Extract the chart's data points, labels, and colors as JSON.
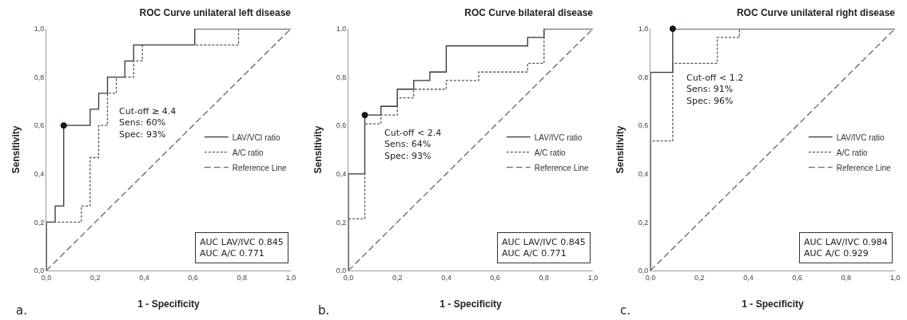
{
  "chart_data": [
    {
      "type": "line",
      "title": "ROC Curve unilateral left disease",
      "xlabel": "1 - Specificity",
      "ylabel": "Sensitivity",
      "xlim": [
        0,
        1
      ],
      "ylim": [
        0,
        1
      ],
      "xticks": [
        {
          "value": 0,
          "label": "0,0"
        },
        {
          "value": 0.2,
          "label": "0,2"
        },
        {
          "value": 0.4,
          "label": "0,4"
        },
        {
          "value": 0.6,
          "label": "0,6"
        },
        {
          "value": 0.8,
          "label": "0,8"
        },
        {
          "value": 1,
          "label": "1,0"
        }
      ],
      "yticks": [
        {
          "value": 0,
          "label": "0,0"
        },
        {
          "value": 0.2,
          "label": "0,2"
        },
        {
          "value": 0.4,
          "label": "0,4"
        },
        {
          "value": 0.6,
          "label": "0,6"
        },
        {
          "value": 0.8,
          "label": "0,8"
        },
        {
          "value": 1,
          "label": "1,0"
        }
      ],
      "grid": false,
      "legend": "right",
      "series": [
        {
          "name": "LAV/VCI ratio",
          "color": "#333333",
          "line_style": "solid",
          "x": [
            0,
            0,
            0.036,
            0.036,
            0.071,
            0.071,
            0.179,
            0.179,
            0.214,
            0.214,
            0.25,
            0.25,
            0.321,
            0.321,
            0.357,
            0.357,
            0.607,
            0.607,
            1
          ],
          "values": [
            0,
            0.2,
            0.2,
            0.267,
            0.267,
            0.6,
            0.6,
            0.667,
            0.667,
            0.733,
            0.733,
            0.8,
            0.8,
            0.867,
            0.867,
            0.933,
            0.933,
            1,
            1
          ]
        },
        {
          "name": "A/C ratio",
          "color": "#555555",
          "line_style": "dotted",
          "x": [
            0,
            0,
            0.143,
            0.143,
            0.179,
            0.179,
            0.214,
            0.214,
            0.25,
            0.25,
            0.286,
            0.286,
            0.357,
            0.357,
            0.393,
            0.393,
            0.786,
            0.786,
            1
          ],
          "values": [
            0,
            0.2,
            0.2,
            0.267,
            0.267,
            0.467,
            0.467,
            0.6,
            0.6,
            0.733,
            0.733,
            0.8,
            0.8,
            0.867,
            0.867,
            0.933,
            0.933,
            1,
            1
          ]
        },
        {
          "name": "Reference Line",
          "color": "#666666",
          "line_style": "dashed",
          "x": [
            0,
            1
          ],
          "values": [
            0,
            1
          ]
        },
        {
          "type": "scatter",
          "color": "#0d1b3e",
          "marker": "circle",
          "x": [
            0.071
          ],
          "values": [
            0.6
          ]
        }
      ],
      "annotations": [
        "Cut-off ≥ 4.4\nSens: 60%\nSpec: 93%",
        "AUC LAV/IVC 0.845\nAUC A/C 0.771",
        "a."
      ]
    },
    {
      "type": "line",
      "title": "ROC Curve bilateral disease",
      "xlabel": "1 - Specificity",
      "ylabel": "Sensitivity",
      "xlim": [
        0,
        1
      ],
      "ylim": [
        0,
        1
      ],
      "xticks": [
        {
          "value": 0,
          "label": "0,0"
        },
        {
          "value": 0.2,
          "label": "0,2"
        },
        {
          "value": 0.4,
          "label": "0,4"
        },
        {
          "value": 0.6,
          "label": "0,6"
        },
        {
          "value": 0.8,
          "label": "0,8"
        },
        {
          "value": 1,
          "label": "1,0"
        }
      ],
      "yticks": [
        {
          "value": 0,
          "label": "0,0"
        },
        {
          "value": 0.2,
          "label": "0,2"
        },
        {
          "value": 0.4,
          "label": "0,4"
        },
        {
          "value": 0.6,
          "label": "0,6"
        },
        {
          "value": 0.8,
          "label": "0,8"
        },
        {
          "value": 1,
          "label": "1,0"
        }
      ],
      "grid": false,
      "legend": "right",
      "series": [
        {
          "name": "LAV/IVC ratio",
          "color": "#333333",
          "line_style": "solid",
          "x": [
            0,
            0,
            0.067,
            0.067,
            0.133,
            0.133,
            0.2,
            0.2,
            0.267,
            0.267,
            0.333,
            0.333,
            0.4,
            0.4,
            0.733,
            0.733,
            0.8,
            0.8,
            1
          ],
          "values": [
            0,
            0.4,
            0.4,
            0.643,
            0.643,
            0.679,
            0.679,
            0.75,
            0.75,
            0.786,
            0.786,
            0.821,
            0.821,
            0.929,
            0.929,
            0.964,
            0.964,
            1,
            1
          ]
        },
        {
          "name": "A/C ratio",
          "color": "#555555",
          "line_style": "dotted",
          "x": [
            0,
            0,
            0.067,
            0.067,
            0.133,
            0.133,
            0.2,
            0.2,
            0.267,
            0.267,
            0.4,
            0.4,
            0.533,
            0.533,
            0.733,
            0.733,
            0.8,
            0.8,
            1
          ],
          "values": [
            0,
            0.214,
            0.214,
            0.607,
            0.607,
            0.643,
            0.643,
            0.714,
            0.714,
            0.75,
            0.75,
            0.786,
            0.786,
            0.821,
            0.821,
            0.857,
            0.857,
            1,
            1
          ]
        },
        {
          "name": "Reference Line",
          "color": "#666666",
          "line_style": "dashed",
          "x": [
            0,
            1
          ],
          "values": [
            0,
            1
          ]
        },
        {
          "type": "scatter",
          "color": "#0d1b3e",
          "marker": "circle",
          "x": [
            0.067
          ],
          "values": [
            0.643
          ]
        }
      ],
      "annotations": [
        "Cut-off < 2.4\nSens: 64%\nSpec: 93%",
        "AUC LAV/IVC 0.845\nAUC A/C 0.771",
        "b."
      ]
    },
    {
      "type": "line",
      "title": "ROC Curve unilateral right disease",
      "xlabel": "1 - Specificity",
      "ylabel": "Sensitivity",
      "xlim": [
        0,
        1
      ],
      "ylim": [
        0,
        1
      ],
      "xticks": [
        {
          "value": 0,
          "label": "0,0"
        },
        {
          "value": 0.2,
          "label": "0,2"
        },
        {
          "value": 0.4,
          "label": "0,4"
        },
        {
          "value": 0.6,
          "label": "0,6"
        },
        {
          "value": 0.8,
          "label": "0,8"
        },
        {
          "value": 1,
          "label": "1,0"
        }
      ],
      "yticks": [
        {
          "value": 0,
          "label": "0,0"
        },
        {
          "value": 0.2,
          "label": "0,2"
        },
        {
          "value": 0.4,
          "label": "0,4"
        },
        {
          "value": 0.6,
          "label": "0,6"
        },
        {
          "value": 0.8,
          "label": "0,8"
        },
        {
          "value": 1,
          "label": "1,0"
        }
      ],
      "grid": false,
      "legend": "right",
      "series": [
        {
          "name": "LAV/IVC ratio",
          "color": "#333333",
          "line_style": "solid",
          "x": [
            0,
            0,
            0.091,
            0.091,
            1
          ],
          "values": [
            0,
            0.82,
            0.82,
            1,
            1
          ]
        },
        {
          "name": "A/C ratio",
          "color": "#555555",
          "line_style": "dotted",
          "x": [
            0,
            0,
            0.091,
            0.091,
            0.273,
            0.273,
            0.364,
            0.364,
            1
          ],
          "values": [
            0,
            0.536,
            0.536,
            0.857,
            0.857,
            0.964,
            0.964,
            1,
            1
          ]
        },
        {
          "name": "Reference Line",
          "color": "#666666",
          "line_style": "dashed",
          "x": [
            0,
            1
          ],
          "values": [
            0,
            1
          ]
        },
        {
          "type": "scatter",
          "color": "#0d1b3e",
          "marker": "circle",
          "x": [
            0.091
          ],
          "values": [
            1
          ]
        }
      ],
      "annotations": [
        "Cut-off < 1.2\nSens: 91%\nSpec: 96%",
        "AUC LAV/IVC 0.984\nAUC A/C 0.929",
        "c."
      ]
    }
  ]
}
